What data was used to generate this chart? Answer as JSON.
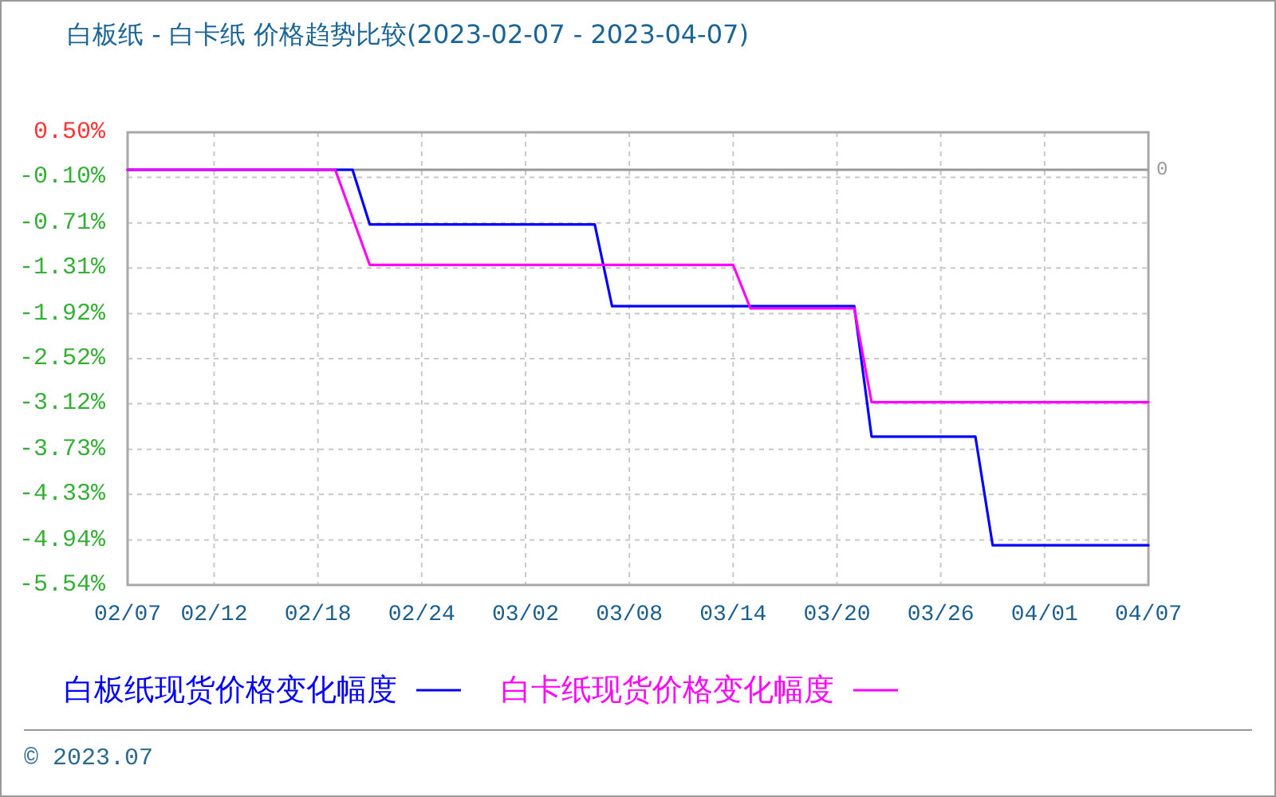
{
  "chart_data": {
    "type": "line",
    "title": "白板纸 - 白卡纸 价格趋势比较(2023-02-07 - 2023-04-07)",
    "series": [
      {
        "name": "白板纸现货价格变化幅度",
        "color": "#0000ff",
        "x": [
          "2023-02-07",
          "2023-02-20",
          "2023-02-21",
          "2023-03-06",
          "2023-03-07",
          "2023-03-21",
          "2023-03-22",
          "2023-03-28",
          "2023-03-29",
          "2023-04-07"
        ],
        "values": [
          0,
          0,
          -0.73,
          -0.73,
          -1.82,
          -1.82,
          -3.56,
          -3.56,
          -5.01,
          -5.01
        ]
      },
      {
        "name": "白卡纸现货价格变化幅度",
        "color": "#ff00ff",
        "x": [
          "2023-02-07",
          "2023-02-19",
          "2023-02-21",
          "2023-03-14",
          "2023-03-15",
          "2023-03-21",
          "2023-03-22",
          "2023-04-07"
        ],
        "values": [
          0,
          0,
          -1.27,
          -1.27,
          -1.85,
          -1.85,
          -3.1,
          -3.1
        ]
      }
    ],
    "xlim": [
      "2023-02-07",
      "2023-04-07"
    ],
    "xticks": [
      {
        "value": "2023-02-07",
        "label": "02/07"
      },
      {
        "value": "2023-02-12",
        "label": "02/12"
      },
      {
        "value": "2023-02-18",
        "label": "02/18"
      },
      {
        "value": "2023-02-24",
        "label": "02/24"
      },
      {
        "value": "2023-03-02",
        "label": "03/02"
      },
      {
        "value": "2023-03-08",
        "label": "03/08"
      },
      {
        "value": "2023-03-14",
        "label": "03/14"
      },
      {
        "value": "2023-03-20",
        "label": "03/20"
      },
      {
        "value": "2023-03-26",
        "label": "03/26"
      },
      {
        "value": "2023-04-01",
        "label": "04/01"
      },
      {
        "value": "2023-04-07",
        "label": "04/07"
      }
    ],
    "ylim": [
      -5.54,
      0.5
    ],
    "yticks": [
      {
        "value": 0.5,
        "label": "0.50%"
      },
      {
        "value": -0.1,
        "label": "-0.10%"
      },
      {
        "value": -0.71,
        "label": "-0.71%"
      },
      {
        "value": -1.31,
        "label": "-1.31%"
      },
      {
        "value": -1.92,
        "label": "-1.92%"
      },
      {
        "value": -2.52,
        "label": "-2.52%"
      },
      {
        "value": -3.12,
        "label": "-3.12%"
      },
      {
        "value": -3.73,
        "label": "-3.73%"
      },
      {
        "value": -4.33,
        "label": "-4.33%"
      },
      {
        "value": -4.94,
        "label": "-4.94%"
      },
      {
        "value": -5.54,
        "label": "-5.54%"
      }
    ],
    "ref_lines": [
      {
        "axis": "y",
        "value": 0,
        "label": "0",
        "color": "#999999"
      }
    ],
    "grid": true,
    "legend": "bottom",
    "annotations": [
      "© 2023.07"
    ]
  }
}
